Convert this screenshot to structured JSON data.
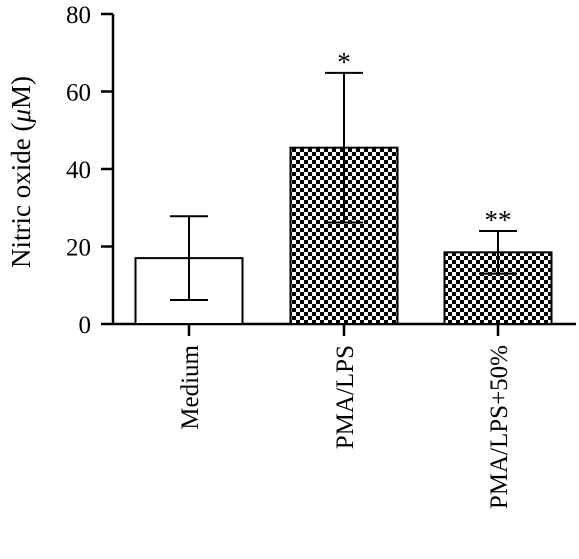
{
  "chart_data": {
    "type": "bar",
    "title": "",
    "xlabel": "",
    "ylabel_text": "Nitric oxide (",
    "ylabel_unit_mu": "μ",
    "ylabel_unit_rest": "M)",
    "ylim": [
      0,
      80
    ],
    "yticks": [
      0,
      20,
      40,
      60,
      80
    ],
    "categories": [
      "Medium",
      "PMA/LPS",
      "PMA/LPS+50%"
    ],
    "values": [
      17,
      45.5,
      18.5
    ],
    "errors": [
      10.8,
      19.3,
      5.5
    ],
    "fill_patterns": [
      "none",
      "checkerboard",
      "checkerboard"
    ],
    "significance": [
      "",
      "*",
      "**"
    ],
    "grid": false,
    "legend": "none"
  },
  "colors": {
    "axis": "#000000",
    "bar_stroke": "#000000",
    "bar_fill_plain": "#ffffff",
    "pattern_dark": "#000000",
    "pattern_light": "#ffffff"
  }
}
